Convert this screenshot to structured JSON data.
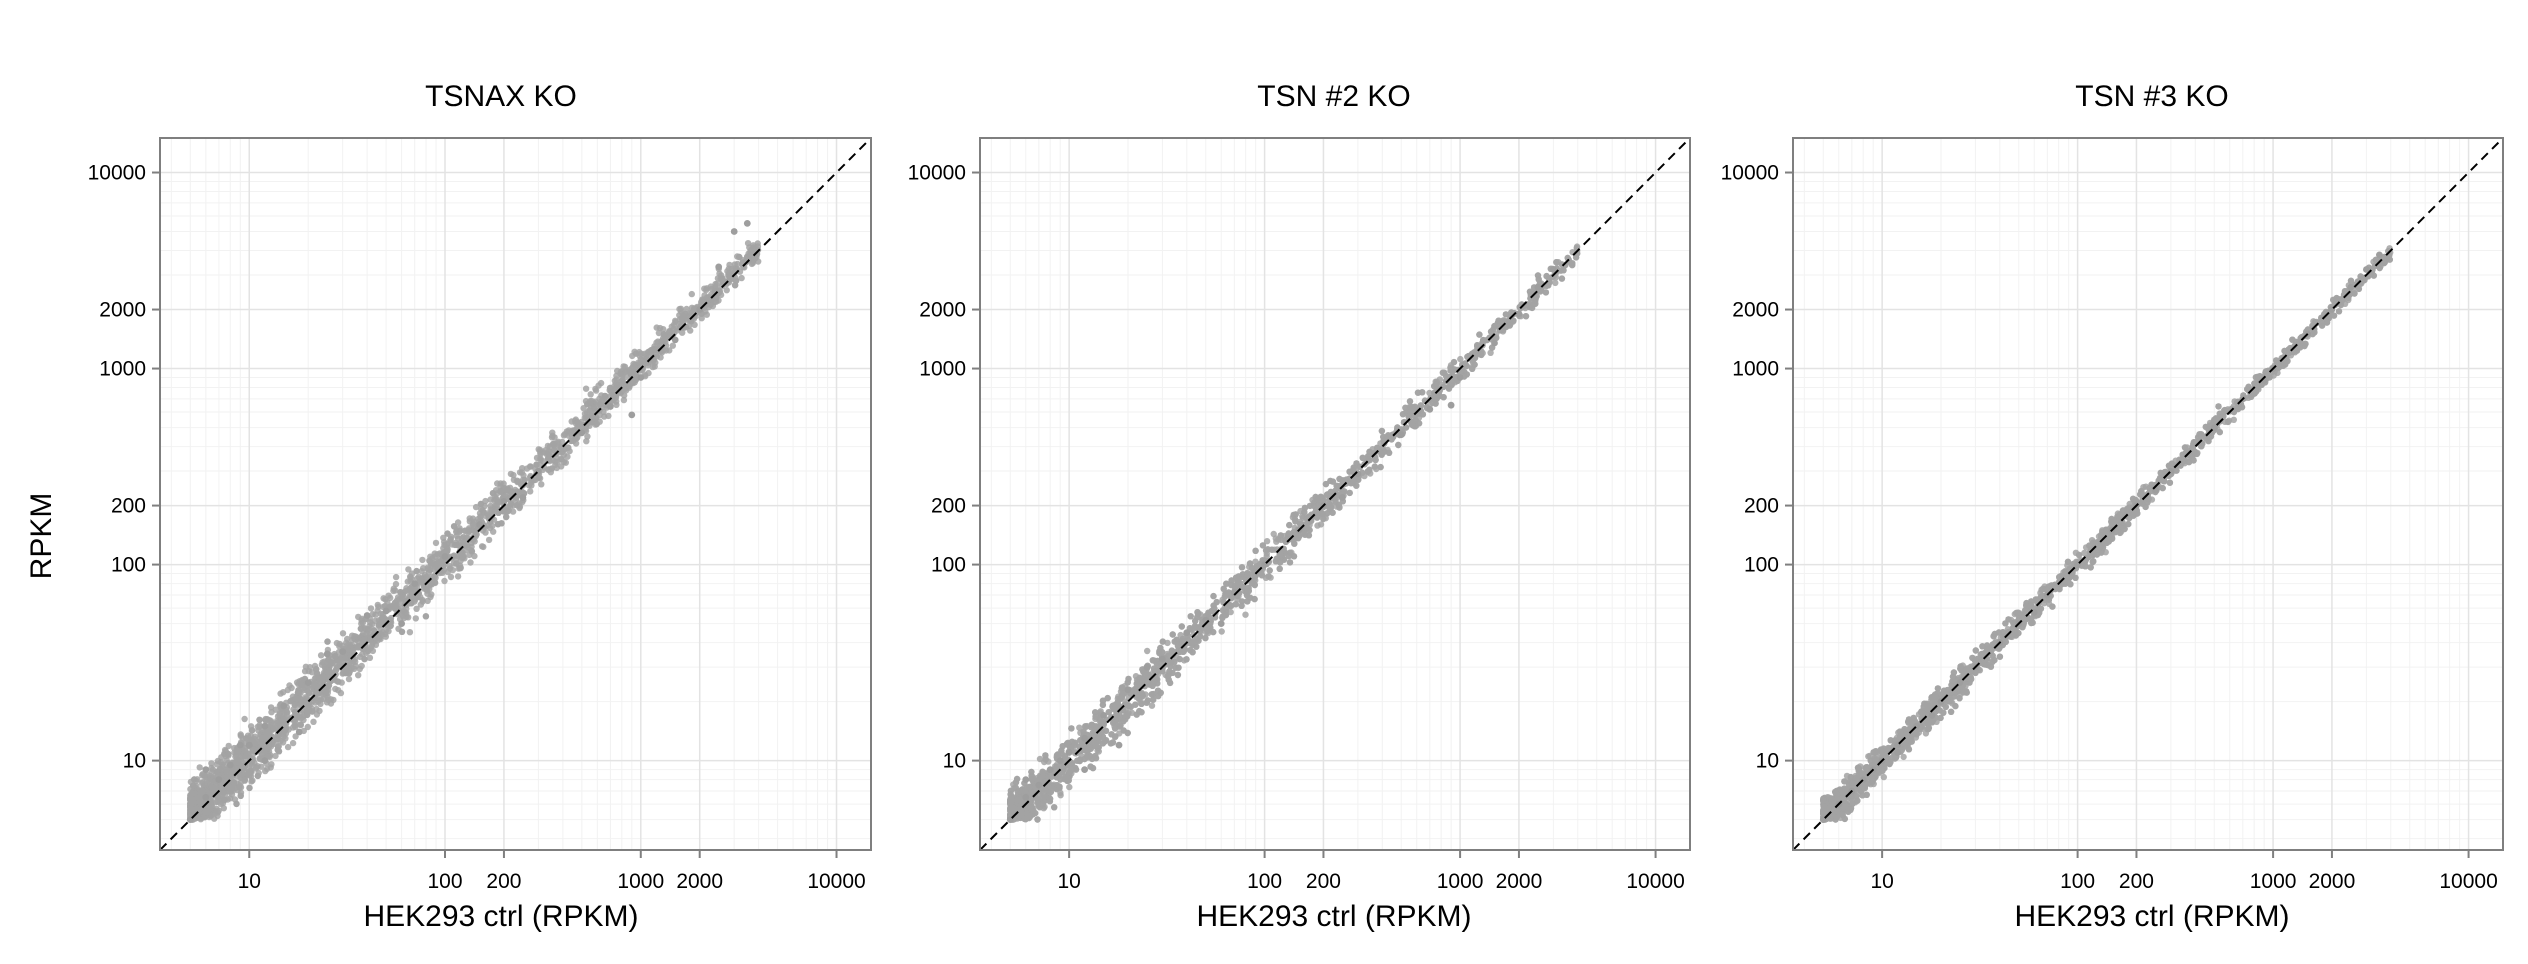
{
  "chart_data": [
    {
      "type": "scatter",
      "title": "TSNAX KO",
      "xlabel": "HEK293 ctrl (RPKM)",
      "ylabel": "RPKM",
      "log_scale": true,
      "xlim": [
        3.5,
        15000
      ],
      "ylim": [
        3.5,
        15000
      ],
      "x_ticks": [
        10,
        100,
        200,
        1000,
        2000,
        10000
      ],
      "y_ticks": [
        10,
        100,
        200,
        1000,
        2000,
        10000
      ],
      "grid": true,
      "reference_line": "y = x (dashed)",
      "point_color": "#9e9e9e",
      "points": {
        "x": [
          5,
          6,
          7,
          8,
          10,
          12,
          15,
          20,
          30,
          50,
          70,
          100,
          150,
          200,
          300,
          500,
          700,
          1000,
          1500,
          2000,
          2500,
          3000,
          3500,
          25,
          40,
          9,
          6,
          12,
          18,
          60,
          250,
          900
        ],
        "y": [
          5,
          6.5,
          8,
          9.5,
          12,
          15,
          19,
          25,
          36,
          58,
          80,
          110,
          160,
          210,
          300,
          470,
          640,
          900,
          1400,
          2000,
          3300,
          5000,
          5500,
          35,
          55,
          12,
          9,
          10,
          14,
          50,
          220,
          580
        ]
      }
    },
    {
      "type": "scatter",
      "title": "TSN #2 KO",
      "xlabel": "HEK293 ctrl (RPKM)",
      "ylabel": "",
      "log_scale": true,
      "xlim": [
        3.5,
        15000
      ],
      "ylim": [
        3.5,
        15000
      ],
      "x_ticks": [
        10,
        100,
        200,
        1000,
        2000,
        10000
      ],
      "y_ticks": [
        10,
        100,
        200,
        1000,
        2000,
        10000
      ],
      "grid": true,
      "reference_line": "y = x (dashed)",
      "point_color": "#9e9e9e",
      "points": {
        "x": [
          5,
          6,
          7,
          8,
          10,
          12,
          15,
          20,
          30,
          50,
          70,
          100,
          150,
          200,
          300,
          500,
          700,
          1000,
          1500,
          2000,
          2500,
          3000,
          25,
          40,
          9,
          6,
          12,
          18,
          60,
          250,
          900
        ],
        "y": [
          5,
          6.5,
          7.5,
          9,
          11,
          13,
          17,
          23,
          33,
          52,
          72,
          100,
          150,
          200,
          290,
          460,
          620,
          900,
          1350,
          1900,
          2600,
          3200,
          30,
          45,
          10,
          8,
          9,
          12,
          50,
          220,
          650
        ]
      }
    },
    {
      "type": "scatter",
      "title": "TSN #3 KO",
      "xlabel": "HEK293 ctrl (RPKM)",
      "ylabel": "",
      "log_scale": true,
      "xlim": [
        3.5,
        15000
      ],
      "ylim": [
        3.5,
        15000
      ],
      "x_ticks": [
        10,
        100,
        200,
        1000,
        2000,
        10000
      ],
      "y_ticks": [
        10,
        100,
        200,
        1000,
        2000,
        10000
      ],
      "grid": true,
      "reference_line": "y = x (dashed)",
      "point_color": "#9e9e9e",
      "points": {
        "x": [
          5,
          6,
          7,
          8,
          10,
          12,
          15,
          20,
          30,
          50,
          70,
          100,
          150,
          200,
          300,
          500,
          700,
          1000,
          1500,
          2000,
          2500,
          3000,
          3500,
          25,
          40,
          9,
          6,
          12,
          18,
          60,
          250,
          900
        ],
        "y": [
          5,
          6,
          7,
          8,
          10,
          12,
          15,
          20,
          30,
          50,
          70,
          100,
          150,
          200,
          300,
          500,
          700,
          1000,
          1500,
          2000,
          2600,
          3200,
          3800,
          25,
          40,
          9,
          6,
          11,
          17,
          57,
          240,
          870
        ]
      }
    }
  ]
}
